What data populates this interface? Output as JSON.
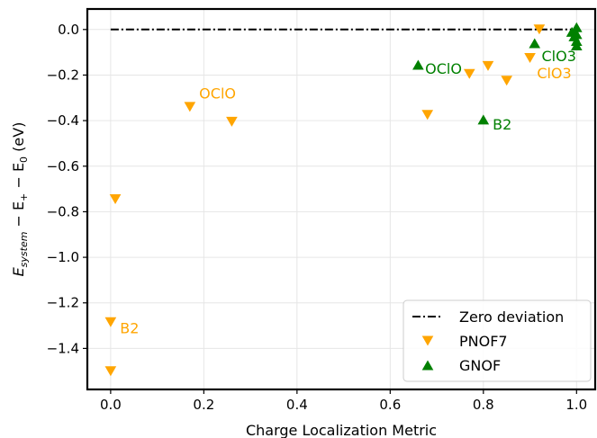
{
  "chart_data": {
    "type": "scatter",
    "xlabel": "Charge Localization Metric",
    "ylabel_main": "E",
    "ylabel_sub_system": "system",
    "ylabel_minus1": " − E",
    "ylabel_sub_plus": "+",
    "ylabel_minus2": " − E",
    "ylabel_sub_zero": "0",
    "ylabel_unit": " (eV)",
    "xlim": [
      -0.05,
      1.04
    ],
    "ylim": [
      -1.58,
      0.09
    ],
    "grid": true,
    "legend_position": "lower-right",
    "x_ticks": [
      0.0,
      0.2,
      0.4,
      0.6,
      0.8,
      1.0
    ],
    "x_tick_labels": [
      "0.0",
      "0.2",
      "0.4",
      "0.6",
      "0.8",
      "1.0"
    ],
    "y_ticks": [
      0.0,
      -0.2,
      -0.4,
      -0.6,
      -0.8,
      -1.0,
      -1.2,
      -1.4
    ],
    "y_tick_labels": [
      "0.0",
      "−0.2",
      "−0.4",
      "−0.6",
      "−0.8",
      "−1.0",
      "−1.2",
      "−1.4"
    ],
    "zero_line": {
      "name": "Zero deviation",
      "y": 0.0,
      "x_range": [
        0.0,
        1.0
      ],
      "color": "#000000"
    },
    "series": [
      {
        "name": "PNOF7",
        "marker": "triangle-down",
        "color": "#FFA500",
        "points": [
          {
            "x": 0.0,
            "y": -1.5
          },
          {
            "x": 0.0,
            "y": -1.285
          },
          {
            "x": 0.01,
            "y": -0.745
          },
          {
            "x": 0.17,
            "y": -0.34
          },
          {
            "x": 0.26,
            "y": -0.405
          },
          {
            "x": 0.68,
            "y": -0.375
          },
          {
            "x": 0.77,
            "y": -0.195
          },
          {
            "x": 0.81,
            "y": -0.16
          },
          {
            "x": 0.85,
            "y": -0.225
          },
          {
            "x": 0.9,
            "y": -0.125
          },
          {
            "x": 0.92,
            "y": 0.0
          }
        ]
      },
      {
        "name": "GNOF",
        "marker": "triangle-up",
        "color": "#008000",
        "points": [
          {
            "x": 0.66,
            "y": -0.155
          },
          {
            "x": 0.8,
            "y": -0.395
          },
          {
            "x": 0.91,
            "y": -0.06
          },
          {
            "x": 0.99,
            "y": -0.01
          },
          {
            "x": 0.995,
            "y": -0.03
          },
          {
            "x": 1.0,
            "y": 0.01
          },
          {
            "x": 1.0,
            "y": -0.05
          },
          {
            "x": 1.0,
            "y": -0.07
          },
          {
            "x": 1.0,
            "y": -0.02
          }
        ]
      }
    ],
    "annotations": [
      {
        "text": "OClO",
        "x": 0.19,
        "y": -0.28,
        "color": "#FFA500"
      },
      {
        "text": "B2",
        "x": 0.02,
        "y": -1.31,
        "color": "#FFA500"
      },
      {
        "text": "ClO3",
        "x": 0.915,
        "y": -0.19,
        "color": "#FFA500"
      },
      {
        "text": "OClO",
        "x": 0.675,
        "y": -0.17,
        "color": "#008000"
      },
      {
        "text": "B2",
        "x": 0.82,
        "y": -0.415,
        "color": "#008000"
      },
      {
        "text": "ClO3",
        "x": 0.925,
        "y": -0.115,
        "color": "#008000"
      }
    ]
  }
}
